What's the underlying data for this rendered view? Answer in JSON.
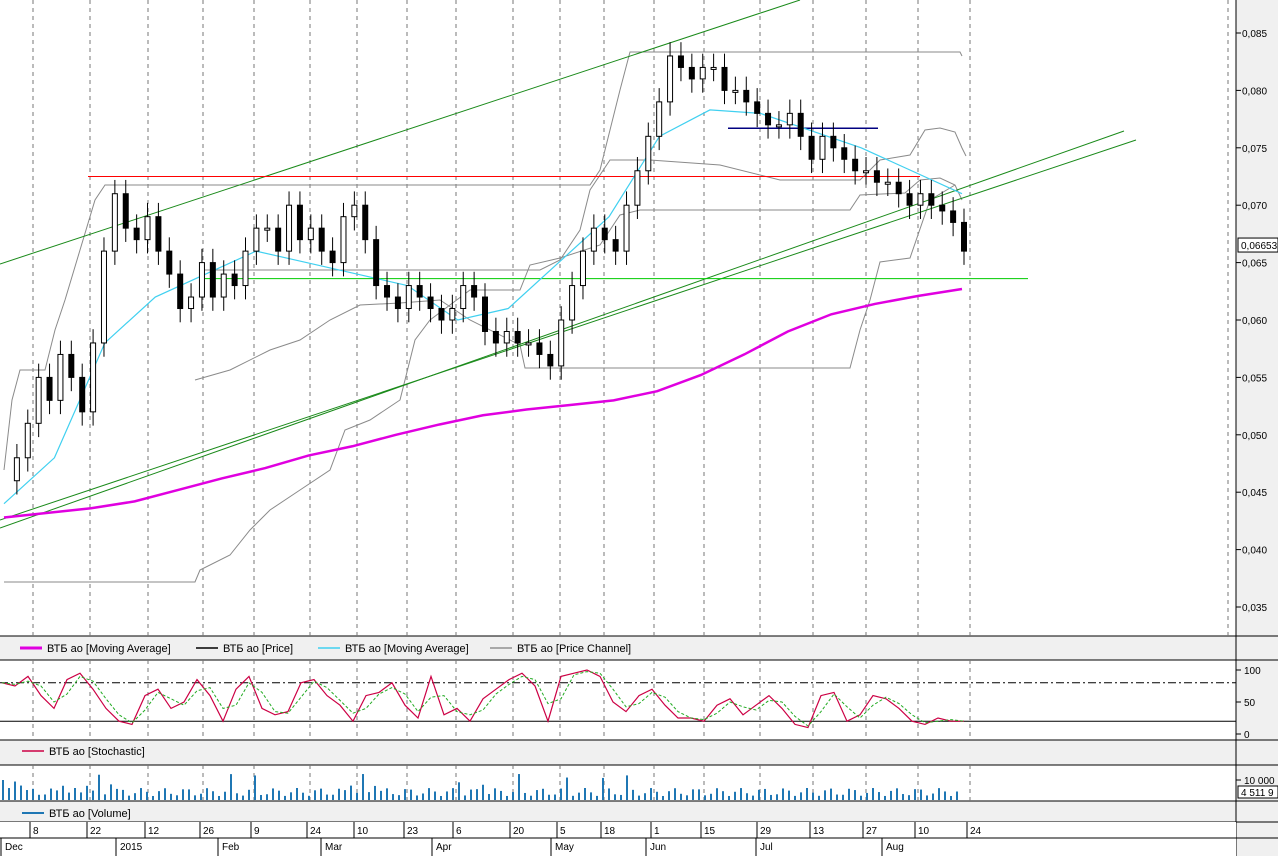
{
  "chart_data": {
    "type": "candlestick",
    "instrument": "ВТБ ао",
    "price_ticks": [
      "0,085",
      "0,080",
      "0,075",
      "0,070",
      "0,065",
      "0,060",
      "0,055",
      "0,050",
      "0,045",
      "0,040",
      "0,035"
    ],
    "price_ylim": [
      0.031,
      0.088
    ],
    "last_price_label": "0,06653",
    "x_day_labels": [
      "8",
      "22",
      "12",
      "26",
      "9",
      "24",
      "10",
      "23",
      "6",
      "20",
      "5",
      "18",
      "1",
      "15",
      "29",
      "13",
      "27",
      "10",
      "24"
    ],
    "x_month_labels": [
      "Dec",
      "2015",
      "Feb",
      "Mar",
      "Apr",
      "May",
      "Jun",
      "Jul",
      "Aug"
    ],
    "horizontal_levels": [
      {
        "value": 0.0725,
        "color": "#ff0000"
      },
      {
        "value": 0.0636,
        "color": "#00cc00"
      },
      {
        "value": 0.0767,
        "color": "#000080"
      }
    ],
    "legend": [
      {
        "label": "ВТБ ао [Moving Average]",
        "color": "#e000e0"
      },
      {
        "label": "ВТБ ао [Price]",
        "color": "#000000"
      },
      {
        "label": "ВТБ ао [Moving Average]",
        "color": "#40d0f0"
      },
      {
        "label": "ВТБ ао [Price Channel]",
        "color": "#909090"
      }
    ],
    "moving_average_long": [
      0.0428,
      0.0432,
      0.0436,
      0.0442,
      0.0452,
      0.0462,
      0.0471,
      0.0482,
      0.049,
      0.05,
      0.0509,
      0.0517,
      0.0522,
      0.0526,
      0.053,
      0.0538,
      0.0552,
      0.057,
      0.059,
      0.0605,
      0.0614,
      0.0621,
      0.0627
    ],
    "moving_average_short": [
      0.044,
      0.048,
      0.058,
      0.062,
      0.064,
      0.066,
      0.065,
      0.064,
      0.063,
      0.06,
      0.061,
      0.065,
      0.069,
      0.076,
      0.0783,
      0.078,
      0.0765,
      0.075,
      0.073,
      0.071
    ],
    "stochastic": {
      "label": "ВТБ ао [Stochastic]",
      "ticks": [
        "100",
        "50",
        "0"
      ],
      "levels": [
        80,
        20
      ],
      "values": [
        80,
        75,
        90,
        60,
        40,
        85,
        95,
        70,
        40,
        20,
        15,
        60,
        70,
        40,
        50,
        85,
        60,
        20,
        70,
        90,
        40,
        30,
        35,
        80,
        85,
        60,
        45,
        20,
        60,
        65,
        80,
        45,
        25,
        90,
        30,
        40,
        20,
        55,
        70,
        85,
        95,
        75,
        20,
        90,
        95,
        100,
        90,
        50,
        35,
        60,
        70,
        45,
        25,
        25,
        20,
        45,
        55,
        30,
        45,
        60,
        40,
        15,
        10,
        60,
        65,
        20,
        30,
        60,
        55,
        40,
        20,
        15,
        25,
        20,
        20
      ]
    },
    "volume": {
      "label": "ВТБ ао [Volume]",
      "ticks": [
        "10 000"
      ],
      "last_value_label": "4 511 9"
    }
  }
}
